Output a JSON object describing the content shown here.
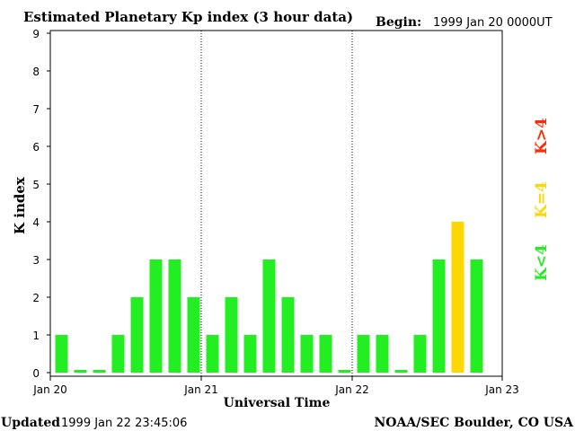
{
  "chart_data": {
    "type": "bar",
    "title": "Estimated Planetary Kp index (3 hour data)",
    "begin_label": "Begin:",
    "begin_value": "1999 Jan 20 0000UT",
    "ylabel": "K index",
    "xlabel": "Universal Time",
    "ylim": [
      0,
      9
    ],
    "yticks": [
      "0",
      "1",
      "2",
      "3",
      "4",
      "5",
      "6",
      "7",
      "8",
      "9"
    ],
    "x_day_labels": [
      "Jan 20",
      "Jan 21",
      "Jan 22",
      "Jan 23"
    ],
    "values": [
      1,
      0,
      0,
      1,
      2,
      3,
      3,
      2,
      1,
      2,
      1,
      3,
      2,
      1,
      1,
      0,
      1,
      1,
      0,
      1,
      3,
      4,
      3
    ],
    "legend": [
      {
        "text": "K>4",
        "color": "#ff2a00"
      },
      {
        "text": "K=4",
        "color": "#ffd700"
      },
      {
        "text": "K<4",
        "color": "#22ee22"
      }
    ],
    "colors": {
      "low": "#22ee22",
      "equal": "#ffd700",
      "high": "#ff2a00"
    }
  },
  "footer": {
    "updated_label": "Updated",
    "updated_value": "1999 Jan 22 23:45:06",
    "source": "NOAA/SEC Boulder, CO USA"
  }
}
